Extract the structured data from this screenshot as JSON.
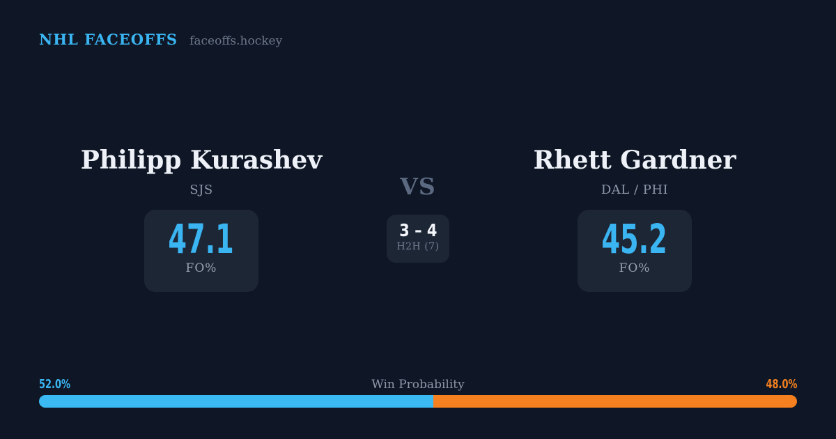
{
  "header": {
    "brand": "NHL FACEOFFS",
    "domain": "faceoffs.hockey"
  },
  "colors": {
    "background": "#0f1726",
    "panel": "#1d2635",
    "accent_blue": "#3ab5f2",
    "accent_orange": "#f5801f"
  },
  "matchup": {
    "vs_label": "VS",
    "h2h": {
      "score": "3 – 4",
      "label": "H2H (7)"
    },
    "players": [
      {
        "name": "Philipp Kurashev",
        "team": "SJS",
        "fo_pct": "47.1",
        "stat_label": "FO%"
      },
      {
        "name": "Rhett Gardner",
        "team": "DAL / PHI",
        "fo_pct": "45.2",
        "stat_label": "FO%"
      }
    ]
  },
  "win_probability": {
    "label": "Win Probability",
    "left_pct_label": "52.0%",
    "right_pct_label": "48.0%",
    "left_value": 52.0,
    "right_value": 48.0
  }
}
